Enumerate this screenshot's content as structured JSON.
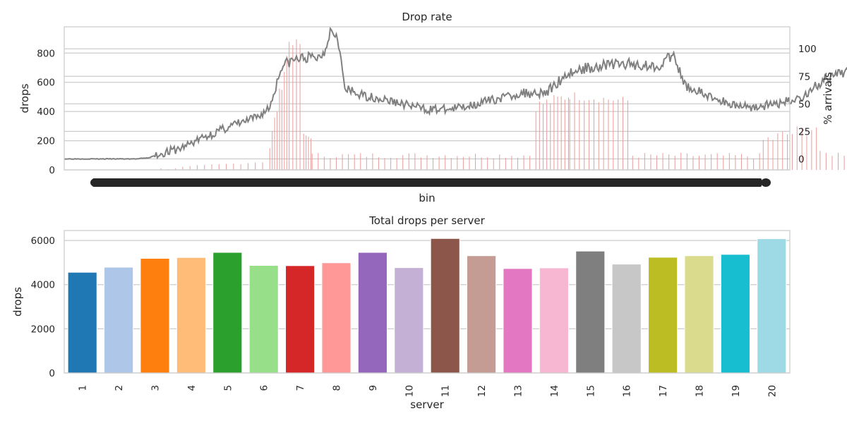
{
  "chart_data": [
    {
      "type": "bar+line",
      "title": "Drop rate",
      "xlabel": "bin",
      "ylabel": "drops",
      "y2label": "% arrivals",
      "ylim": [
        0,
        980
      ],
      "y2lim": [
        -10,
        120
      ],
      "yticks": [
        0,
        200,
        400,
        600,
        800
      ],
      "y2ticks": [
        0,
        25,
        50,
        75,
        100
      ],
      "x_tick_labels_note": "x tick labels are densely overlapping and unreadable",
      "x": {
        "start": 0,
        "end": 600,
        "step": 1
      },
      "bars": {
        "name": "drops",
        "color": "#e8a09e",
        "segments": [
          {
            "x0": 0,
            "x1": 68,
            "v0": 0,
            "v1": 0,
            "period": 1,
            "jitter": 0
          },
          {
            "x0": 68,
            "x1": 170,
            "v0": 0,
            "v1": 60,
            "period": 6,
            "jitter": 8
          },
          {
            "x0": 170,
            "x1": 186,
            "v0": 160,
            "v1": 860,
            "period": 2,
            "jitter": 50
          },
          {
            "x0": 186,
            "x1": 198,
            "v0": 880,
            "v1": 860,
            "period": 3,
            "jitter": 25
          },
          {
            "x0": 198,
            "x1": 205,
            "v0": 240,
            "v1": 220,
            "period": 2,
            "jitter": 10
          },
          {
            "x0": 205,
            "x1": 390,
            "v0": 100,
            "v1": 100,
            "period": 5,
            "jitter": 20
          },
          {
            "x0": 390,
            "x1": 418,
            "v0": 440,
            "v1": 510,
            "period": 3,
            "jitter": 40
          },
          {
            "x0": 418,
            "x1": 470,
            "v0": 510,
            "v1": 470,
            "period": 4,
            "jitter": 30
          },
          {
            "x0": 470,
            "x1": 578,
            "v0": 100,
            "v1": 95,
            "period": 5,
            "jitter": 20
          },
          {
            "x0": 578,
            "x1": 625,
            "v0": 200,
            "v1": 300,
            "period": 4,
            "jitter": 50
          },
          {
            "x0": 625,
            "x1": 760,
            "v0": 110,
            "v1": 110,
            "period": 5,
            "jitter": 20
          },
          {
            "x0": 760,
            "x1": 790,
            "v0": 110,
            "v1": 115,
            "period": 4,
            "jitter": 15
          }
        ]
      },
      "line": {
        "name": "% arrivals",
        "color": "#808080",
        "points": [
          [
            0,
            0
          ],
          [
            20,
            0
          ],
          [
            40,
            0
          ],
          [
            60,
            0
          ],
          [
            70,
            1
          ],
          [
            80,
            5
          ],
          [
            95,
            9
          ],
          [
            110,
            17
          ],
          [
            125,
            24
          ],
          [
            140,
            31
          ],
          [
            150,
            34
          ],
          [
            160,
            38
          ],
          [
            170,
            47
          ],
          [
            180,
            85
          ],
          [
            190,
            90
          ],
          [
            200,
            92
          ],
          [
            210,
            92
          ],
          [
            215,
            97
          ],
          [
            220,
            117
          ],
          [
            226,
            113
          ],
          [
            232,
            63
          ],
          [
            245,
            58
          ],
          [
            260,
            55
          ],
          [
            280,
            50
          ],
          [
            300,
            45
          ],
          [
            320,
            45
          ],
          [
            340,
            50
          ],
          [
            360,
            55
          ],
          [
            380,
            60
          ],
          [
            400,
            61
          ],
          [
            415,
            77
          ],
          [
            430,
            82
          ],
          [
            450,
            86
          ],
          [
            470,
            86
          ],
          [
            490,
            84
          ],
          [
            500,
            92
          ],
          [
            505,
            92
          ],
          [
            512,
            68
          ],
          [
            530,
            58
          ],
          [
            550,
            50
          ],
          [
            570,
            47
          ],
          [
            590,
            50
          ],
          [
            610,
            56
          ],
          [
            625,
            69
          ],
          [
            640,
            76
          ],
          [
            650,
            82
          ],
          [
            652,
            91
          ],
          [
            658,
            83
          ],
          [
            670,
            76
          ],
          [
            690,
            61
          ],
          [
            710,
            56
          ],
          [
            730,
            54
          ],
          [
            750,
            56
          ],
          [
            770,
            57
          ],
          [
            790,
            62
          ]
        ],
        "x_end": 790
      }
    },
    {
      "type": "bar",
      "title": "Total drops per server",
      "xlabel": "server",
      "ylabel": "drops",
      "ylim": [
        0,
        6450
      ],
      "yticks": [
        0,
        2000,
        4000,
        6000
      ],
      "categories": [
        "1",
        "2",
        "3",
        "4",
        "5",
        "6",
        "7",
        "8",
        "9",
        "10",
        "11",
        "12",
        "13",
        "14",
        "15",
        "16",
        "17",
        "18",
        "19",
        "20"
      ],
      "values": [
        4560,
        4790,
        5190,
        5230,
        5460,
        4870,
        4860,
        4990,
        5460,
        4770,
        6090,
        5310,
        4730,
        4760,
        5520,
        4930,
        5240,
        5310,
        5370,
        6080
      ],
      "colors": [
        "#1f77b4",
        "#aec7e8",
        "#ff7f0e",
        "#ffbb78",
        "#2ca02c",
        "#98df8a",
        "#d62728",
        "#ff9896",
        "#9467bd",
        "#c5b0d5",
        "#8c564b",
        "#c49c94",
        "#e377c2",
        "#f7b6d2",
        "#7f7f7f",
        "#c7c7c7",
        "#bcbd22",
        "#dbdb8d",
        "#17becf",
        "#9edae5"
      ]
    }
  ]
}
